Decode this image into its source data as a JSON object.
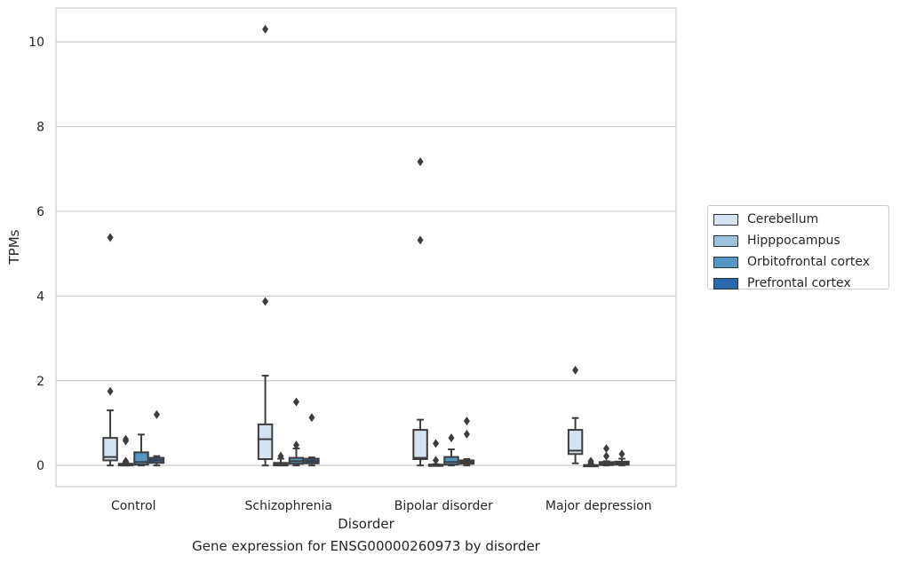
{
  "chart_data": {
    "type": "box",
    "xlabel": "Disorder",
    "ylabel": "TPMs",
    "ylim": [
      -0.5,
      10.8
    ],
    "yticks": [
      0,
      2,
      4,
      6,
      8,
      10
    ],
    "grid": "horizontal",
    "legend_position": "right",
    "categories": [
      "Control",
      "Schizophrenia",
      "Bipolar disorder",
      "Major depression"
    ],
    "series": [
      {
        "name": "Cerebellum",
        "color": "#d4e3f2",
        "boxes": [
          {
            "whislo": 0.0,
            "q1": 0.12,
            "med": 0.2,
            "q3": 0.65,
            "whishi": 1.3,
            "fliers": [
              1.75,
              5.38
            ]
          },
          {
            "whislo": 0.0,
            "q1": 0.15,
            "med": 0.62,
            "q3": 0.97,
            "whishi": 2.12,
            "fliers": [
              3.87,
              10.3
            ]
          },
          {
            "whislo": 0.0,
            "q1": 0.15,
            "med": 0.18,
            "q3": 0.84,
            "whishi": 1.08,
            "fliers": [
              5.32,
              7.17
            ]
          },
          {
            "whislo": 0.05,
            "q1": 0.27,
            "med": 0.35,
            "q3": 0.84,
            "whishi": 1.12,
            "fliers": [
              2.25
            ]
          }
        ]
      },
      {
        "name": "Hipppocampus",
        "color": "#9cc3dd",
        "boxes": [
          {
            "whislo": 0.0,
            "q1": 0.0,
            "med": 0.02,
            "q3": 0.04,
            "whishi": 0.06,
            "fliers": [
              0.1,
              0.58,
              0.62
            ]
          },
          {
            "whislo": 0.0,
            "q1": 0.0,
            "med": 0.02,
            "q3": 0.06,
            "whishi": 0.16,
            "fliers": [
              0.22
            ]
          },
          {
            "whislo": 0.0,
            "q1": 0.0,
            "med": 0.0,
            "q3": 0.02,
            "whishi": 0.03,
            "fliers": [
              0.12,
              0.52
            ]
          },
          {
            "whislo": 0.0,
            "q1": 0.0,
            "med": 0.0,
            "q3": 0.01,
            "whishi": 0.02,
            "fliers": [
              0.06,
              0.1
            ]
          }
        ]
      },
      {
        "name": "Orbitofrontal cortex",
        "color": "#5496c5",
        "boxes": [
          {
            "whislo": 0.0,
            "q1": 0.02,
            "med": 0.08,
            "q3": 0.31,
            "whishi": 0.73,
            "fliers": []
          },
          {
            "whislo": 0.0,
            "q1": 0.04,
            "med": 0.1,
            "q3": 0.18,
            "whishi": 0.4,
            "fliers": [
              0.48,
              1.5
            ]
          },
          {
            "whislo": 0.0,
            "q1": 0.02,
            "med": 0.08,
            "q3": 0.2,
            "whishi": 0.38,
            "fliers": [
              0.65
            ]
          },
          {
            "whislo": 0.0,
            "q1": 0.01,
            "med": 0.04,
            "q3": 0.08,
            "whishi": 0.1,
            "fliers": [
              0.22,
              0.4
            ]
          }
        ]
      },
      {
        "name": "Prefrontal cortex",
        "color": "#2868ab",
        "boxes": [
          {
            "whislo": 0.0,
            "q1": 0.06,
            "med": 0.12,
            "q3": 0.18,
            "whishi": 0.22,
            "fliers": [
              1.2
            ]
          },
          {
            "whislo": 0.0,
            "q1": 0.05,
            "med": 0.1,
            "q3": 0.16,
            "whishi": 0.19,
            "fliers": [
              1.13
            ]
          },
          {
            "whislo": 0.0,
            "q1": 0.04,
            "med": 0.08,
            "q3": 0.12,
            "whishi": 0.15,
            "fliers": [
              0.74,
              1.05
            ]
          },
          {
            "whislo": 0.0,
            "q1": 0.02,
            "med": 0.05,
            "q3": 0.09,
            "whishi": 0.16,
            "fliers": [
              0.27
            ]
          }
        ]
      }
    ]
  },
  "caption": "Gene expression for ENSG00000260973 by disorder"
}
